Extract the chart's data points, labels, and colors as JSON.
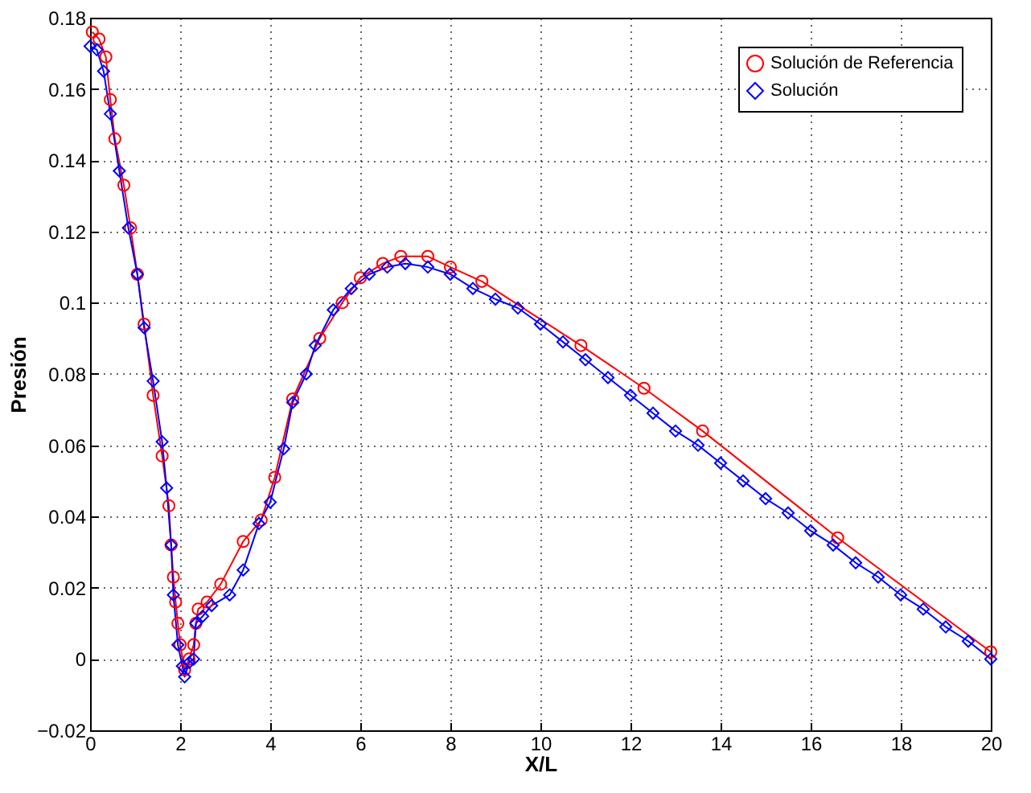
{
  "chart_data": {
    "type": "line",
    "xlabel": "X/L",
    "ylabel": "Presión",
    "xlim": [
      0,
      20
    ],
    "xticks": [
      0,
      2,
      4,
      6,
      8,
      10,
      12,
      14,
      16,
      18,
      20
    ],
    "ylim": [
      -0.02,
      0.18
    ],
    "yticks": [
      -0.02,
      0,
      0.02,
      0.04,
      0.06,
      0.08,
      0.1,
      0.12,
      0.14,
      0.16,
      0.18
    ],
    "grid": true,
    "legend": "top right",
    "line_style": "solid",
    "series": [
      {
        "name": "Solución de Referencia",
        "color": "#ff0000",
        "marker": "circle",
        "x": [
          0.05,
          0.2,
          0.35,
          0.45,
          0.55,
          0.75,
          0.9,
          1.05,
          1.2,
          1.4,
          1.6,
          1.75,
          1.8,
          1.85,
          1.9,
          1.95,
          2.0,
          2.1,
          2.2,
          2.3,
          2.35,
          2.4,
          2.6,
          2.9,
          3.4,
          3.8,
          4.1,
          4.5,
          5.1,
          5.6,
          6.0,
          6.5,
          6.9,
          7.5,
          8.0,
          8.7,
          10.9,
          12.3,
          13.6,
          16.6,
          20.0
        ],
        "values": [
          0.176,
          0.174,
          0.169,
          0.157,
          0.146,
          0.133,
          0.121,
          0.108,
          0.094,
          0.074,
          0.057,
          0.043,
          0.032,
          0.023,
          0.016,
          0.01,
          0.004,
          -0.003,
          0.0,
          0.004,
          0.01,
          0.014,
          0.016,
          0.021,
          0.033,
          0.039,
          0.051,
          0.073,
          0.09,
          0.1,
          0.107,
          0.111,
          0.113,
          0.113,
          0.11,
          0.106,
          0.088,
          0.076,
          0.064,
          0.034,
          0.002
        ]
      },
      {
        "name": "Solución",
        "color": "#0000ff",
        "marker": "diamond",
        "x": [
          0,
          0.15,
          0.3,
          0.45,
          0.65,
          0.85,
          1.05,
          1.2,
          1.4,
          1.6,
          1.7,
          1.8,
          1.85,
          1.95,
          2.05,
          2.1,
          2.2,
          2.3,
          2.35,
          2.5,
          2.7,
          3.1,
          3.4,
          3.75,
          4.0,
          4.3,
          4.5,
          4.8,
          5.0,
          5.4,
          5.8,
          6.2,
          6.6,
          7.0,
          7.5,
          8.0,
          8.5,
          9.0,
          9.5,
          10.0,
          10.5,
          11.0,
          11.5,
          12.0,
          12.5,
          13.0,
          13.5,
          14.0,
          14.5,
          15.0,
          15.5,
          16.0,
          16.5,
          17.0,
          17.5,
          18.0,
          18.5,
          19.0,
          19.5,
          20.0
        ],
        "values": [
          0.172,
          0.171,
          0.165,
          0.153,
          0.137,
          0.121,
          0.108,
          0.093,
          0.078,
          0.061,
          0.048,
          0.032,
          0.018,
          0.004,
          -0.002,
          -0.005,
          -0.001,
          0.0,
          0.01,
          0.012,
          0.015,
          0.018,
          0.025,
          0.038,
          0.044,
          0.059,
          0.072,
          0.08,
          0.088,
          0.098,
          0.104,
          0.108,
          0.11,
          0.111,
          0.11,
          0.108,
          0.104,
          0.101,
          0.0985,
          0.094,
          0.089,
          0.084,
          0.079,
          0.074,
          0.069,
          0.064,
          0.06,
          0.055,
          0.05,
          0.045,
          0.041,
          0.036,
          0.032,
          0.027,
          0.023,
          0.018,
          0.014,
          0.009,
          0.005,
          0.0
        ]
      }
    ]
  }
}
